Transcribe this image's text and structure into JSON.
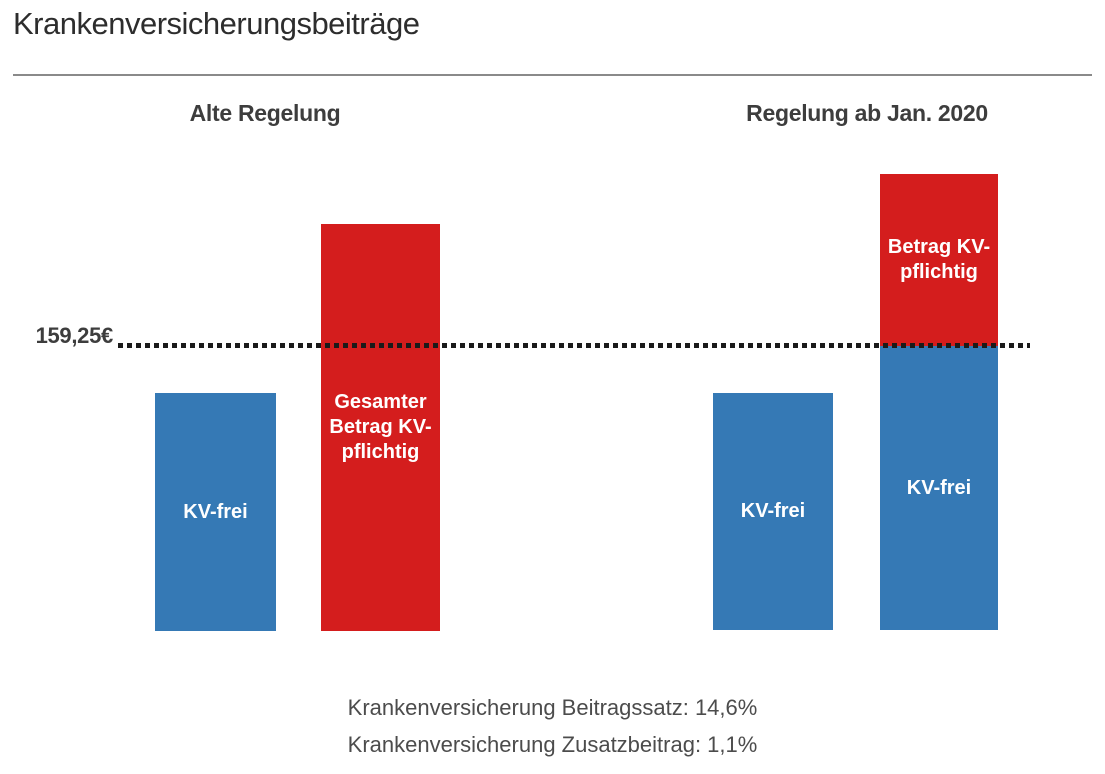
{
  "page": {
    "title": "Krankenversicherungsbeiträge"
  },
  "colors": {
    "background": "#ffffff",
    "bar_blue": "#3579b5",
    "bar_red": "#d41d1d",
    "bar_label_text": "#ffffff",
    "title_text": "#2d2d2d",
    "header_text": "#3d3d3d",
    "footer_text": "#4c4c4c",
    "reference_line_dots": "#1a1a1a",
    "divider": "#8a8a8a"
  },
  "chart_data": {
    "type": "bar",
    "title": "Krankenversicherungsbeiträge",
    "reference_line": {
      "label": "159,25€",
      "value_eur": 159.25,
      "style": "dotted"
    },
    "groups": [
      {
        "label": "Alte Regelung",
        "bars": [
          {
            "label": "KV-frei",
            "color": "#3579b5",
            "estimated_value_eur": 133
          },
          {
            "label": "Gesamter Betrag KV-pflichtig",
            "color": "#d41d1d",
            "estimated_value_eur": 227
          }
        ]
      },
      {
        "label": "Regelung ab Jan. 2020",
        "bars": [
          {
            "label": "KV-frei",
            "color": "#3579b5",
            "estimated_value_eur": 133
          },
          {
            "label": "KV-frei + Betrag KV-pflichtig (gestapelt)",
            "type": "stacked",
            "segments": [
              {
                "label": "KV-frei",
                "color": "#3579b5",
                "estimated_value_eur": 159.25
              },
              {
                "label": "Betrag KV-pflichtig",
                "color": "#d41d1d",
                "estimated_value_eur": 96
              }
            ]
          }
        ]
      }
    ],
    "footnotes": [
      "Krankenversicherung Beitragssatz: 14,6%",
      "Krankenversicherung Zusatzbeitrag: 1,1%"
    ],
    "layout_hints": {
      "baseline": "bars share common zero baseline, no axis lines drawn",
      "legend": "none",
      "grid": "off"
    }
  }
}
